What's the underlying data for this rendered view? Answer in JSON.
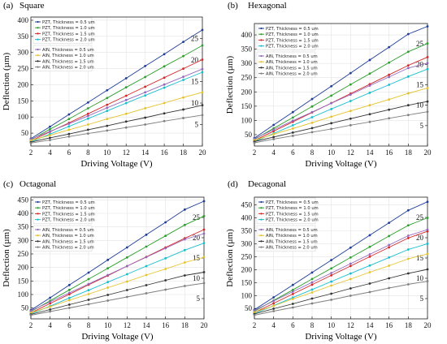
{
  "figure": {
    "panels": [
      {
        "panel_label": "(a)",
        "title": "Square",
        "xlabel": "Driving Voltage (V)",
        "ylabel": "Deflection (µm)",
        "x_ticks": [
          2,
          4,
          6,
          8,
          10,
          12,
          14,
          16,
          18,
          20
        ],
        "left_ticks": [
          50,
          100,
          150,
          200,
          250,
          300,
          350,
          400
        ],
        "right_ticks": [
          5,
          10,
          15,
          20,
          25
        ],
        "legend_pzt": [
          "PZT, Thickness = 0.5 um",
          "PZT, Thickness = 1.0 um",
          "PZT, Thickness = 1.5 um",
          "PZT, Thickness = 2.0 um"
        ],
        "legend_aln": [
          "AlN, Thickness = 0.5 um",
          "AlN, Thickness = 1.0 um",
          "AlN, Thickness = 1.5 um",
          "AlN, Thickness = 2.0 um"
        ]
      },
      {
        "panel_label": "(b)",
        "title": "Hexagonal",
        "xlabel": "Driving Voltage (V)",
        "ylabel": "Deflection (µm)",
        "x_ticks": [
          2,
          4,
          6,
          8,
          10,
          12,
          14,
          16,
          18,
          20
        ],
        "left_ticks": [
          50,
          100,
          150,
          200,
          250,
          300,
          350,
          400
        ],
        "right_ticks": [
          5,
          10,
          15,
          20,
          25
        ],
        "legend_pzt": [
          "PZT, Thickness = 0.5 um",
          "PZT, Thickness = 1.0 um",
          "PZT, Thickness = 1.5 um",
          "PZT, Thickness = 2.0 um"
        ],
        "legend_aln": [
          "AlN, Thickness = 0.5 um",
          "AlN, Thickness = 1.0 um",
          "AlN, Thickness = 1.5 um",
          "AlN, Thickness = 2.0 um"
        ]
      },
      {
        "panel_label": "(c)",
        "title": "Octagonal",
        "xlabel": "Driving Voltage (V)",
        "ylabel": "Deflection (µm)",
        "x_ticks": [
          2,
          4,
          6,
          8,
          10,
          12,
          14,
          16,
          18,
          20
        ],
        "left_ticks": [
          50,
          100,
          150,
          200,
          250,
          300,
          350,
          400,
          450
        ],
        "right_ticks": [
          5,
          10,
          15,
          20,
          25
        ],
        "legend_pzt": [
          "PZT, Thickness = 0.5 um",
          "PZT, Thickness = 1.0 um",
          "PZT, Thickness = 1.5 um",
          "PZT, Thickness = 2.0 um"
        ],
        "legend_aln": [
          "AlN, Thickness = 0.5 um",
          "AlN, Thickness = 1.0 um",
          "AlN, Thickness = 1.5 um",
          "AlN, Thickness = 2.0 um"
        ]
      },
      {
        "panel_label": "(d)",
        "title": "Decagonal",
        "xlabel": "Driving Voltage (V)",
        "ylabel": "Deflection (µm)",
        "x_ticks": [
          2,
          4,
          6,
          8,
          10,
          12,
          14,
          16,
          18,
          20
        ],
        "left_ticks": [
          50,
          100,
          150,
          200,
          250,
          300,
          350,
          400,
          450
        ],
        "right_ticks": [
          5,
          10,
          15,
          20,
          25
        ],
        "legend_pzt": [
          "PZT, Thickness = 0.5 um",
          "PZT, Thickness = 1.0 um",
          "PZT, Thickness = 1.5 um",
          "PZT, Thickness = 2.0 um"
        ],
        "legend_aln": [
          "AlN, Thickness = 0.5 um",
          "AlN, Thickness = 1.0 um",
          "AlN, Thickness = 1.5 um",
          "AlN, Thickness = 2.0 um"
        ]
      }
    ]
  },
  "chart_data": [
    {
      "type": "line",
      "title": "Square",
      "xlabel": "Driving Voltage (V)",
      "ylabel": "Deflection (µm)",
      "xlim": [
        2,
        20
      ],
      "ylim_left": [
        10,
        410
      ],
      "ylim_right": [
        0,
        30
      ],
      "grid": true,
      "legend_placement": "top-left",
      "x": [
        2,
        4,
        6,
        8,
        10,
        12,
        14,
        16,
        18,
        20
      ],
      "series": [
        {
          "name": "PZT, Thickness = 0.5 um",
          "axis": "left",
          "color": "#1f3d99",
          "values": [
            33,
            70,
            108,
            145,
            183,
            220,
            258,
            295,
            333,
            370
          ]
        },
        {
          "name": "PZT, Thickness = 1.0 um",
          "axis": "left",
          "color": "#2ca02c",
          "values": [
            29,
            62,
            94,
            127,
            159,
            192,
            224,
            257,
            289,
            322
          ]
        },
        {
          "name": "PZT, Thickness = 1.5 um",
          "axis": "left",
          "color": "#d62728",
          "values": [
            26,
            54,
            82,
            110,
            138,
            166,
            194,
            222,
            250,
            278
          ]
        },
        {
          "name": "PZT, Thickness = 2.0 um",
          "axis": "left",
          "color": "#17becf",
          "values": [
            23,
            47,
            71,
            95,
            119,
            143,
            167,
            191,
            215,
            239
          ]
        },
        {
          "name": "AlN, Thickness = 0.5 um",
          "axis": "right",
          "color": "#9467bd",
          "values": [
            1.6,
            3.4,
            5.2,
            7.0,
            8.9,
            10.7,
            12.5,
            14.3,
            16.1,
            17.9
          ]
        },
        {
          "name": "AlN, Thickness = 1.0 um",
          "axis": "right",
          "color": "#e6c229",
          "values": [
            1.3,
            2.5,
            3.8,
            5.0,
            6.3,
            7.5,
            8.8,
            10.0,
            11.3,
            12.5
          ]
        },
        {
          "name": "AlN, Thickness = 1.5 um",
          "axis": "right",
          "color": "#333333",
          "values": [
            0.9,
            1.9,
            2.8,
            3.8,
            4.7,
            5.7,
            6.6,
            7.6,
            8.5,
            9.5
          ]
        },
        {
          "name": "AlN, Thickness = 2.0 um",
          "axis": "right",
          "color": "#7f7f7f",
          "values": [
            0.7,
            1.4,
            2.2,
            2.9,
            3.6,
            4.3,
            5.0,
            5.8,
            6.5,
            7.2
          ]
        }
      ]
    },
    {
      "type": "line",
      "title": "Hexagonal",
      "xlabel": "Driving Voltage (V)",
      "ylabel": "Deflection (µm)",
      "xlim": [
        2,
        20
      ],
      "ylim_left": [
        10,
        440
      ],
      "ylim_right": [
        0,
        30
      ],
      "grid": true,
      "legend_placement": "top-left",
      "x": [
        2,
        4,
        6,
        8,
        10,
        12,
        14,
        16,
        18,
        20
      ],
      "series": [
        {
          "name": "PZT, Thickness = 0.5 um",
          "axis": "left",
          "color": "#1f3d99",
          "values": [
            38,
            84,
            129,
            175,
            220,
            266,
            312,
            357,
            403,
            430
          ]
        },
        {
          "name": "PZT, Thickness = 1.0 um",
          "axis": "left",
          "color": "#2ca02c",
          "values": [
            33,
            72,
            110,
            149,
            187,
            226,
            264,
            303,
            341,
            370
          ]
        },
        {
          "name": "PZT, Thickness = 1.5 um",
          "axis": "left",
          "color": "#d62728",
          "values": [
            29,
            62,
            95,
            128,
            161,
            194,
            227,
            260,
            293,
            322
          ]
        },
        {
          "name": "PZT, Thickness = 2.0 um",
          "axis": "left",
          "color": "#17becf",
          "values": [
            26,
            54,
            83,
            111,
            140,
            168,
            197,
            225,
            254,
            280
          ]
        },
        {
          "name": "AlN, Thickness = 0.5 um",
          "axis": "right",
          "color": "#9467bd",
          "values": [
            1.8,
            4.0,
            6.2,
            8.3,
            10.5,
            12.6,
            14.8,
            16.9,
            19.1,
            20.3
          ]
        },
        {
          "name": "AlN, Thickness = 1.0 um",
          "axis": "right",
          "color": "#e6c229",
          "values": [
            1.4,
            2.9,
            4.3,
            5.7,
            7.2,
            8.6,
            10.0,
            11.4,
            12.9,
            14.2
          ]
        },
        {
          "name": "AlN, Thickness = 1.5 um",
          "axis": "right",
          "color": "#333333",
          "values": [
            1.1,
            2.2,
            3.3,
            4.4,
            5.6,
            6.7,
            7.8,
            8.9,
            10.0,
            10.9
          ]
        },
        {
          "name": "AlN, Thickness = 2.0 um",
          "axis": "right",
          "color": "#7f7f7f",
          "values": [
            0.8,
            1.7,
            2.5,
            3.4,
            4.2,
            5.1,
            5.9,
            6.8,
            7.6,
            8.4
          ]
        }
      ]
    },
    {
      "type": "line",
      "title": "Octagonal",
      "xlabel": "Driving Voltage (V)",
      "ylabel": "Deflection (µm)",
      "xlim": [
        2,
        20
      ],
      "ylim_left": [
        10,
        460
      ],
      "ylim_right": [
        0,
        30
      ],
      "grid": true,
      "legend_placement": "top-left",
      "x": [
        2,
        4,
        6,
        8,
        10,
        12,
        14,
        16,
        18,
        20
      ],
      "series": [
        {
          "name": "PZT, Thickness = 0.5 um",
          "axis": "left",
          "color": "#1f3d99",
          "values": [
            42,
            88,
            135,
            181,
            228,
            274,
            321,
            367,
            414,
            445
          ]
        },
        {
          "name": "PZT, Thickness = 1.0 um",
          "axis": "left",
          "color": "#2ca02c",
          "values": [
            37,
            77,
            117,
            157,
            197,
            237,
            277,
            317,
            357,
            390
          ]
        },
        {
          "name": "PZT, Thickness = 1.5 um",
          "axis": "left",
          "color": "#d62728",
          "values": [
            32,
            67,
            101,
            136,
            170,
            205,
            239,
            274,
            308,
            340
          ]
        },
        {
          "name": "PZT, Thickness = 2.0 um",
          "axis": "left",
          "color": "#17becf",
          "values": [
            28,
            57,
            87,
            116,
            146,
            175,
            205,
            234,
            264,
            290
          ]
        },
        {
          "name": "AlN, Thickness = 0.5 um",
          "axis": "right",
          "color": "#9467bd",
          "values": [
            2.0,
            4.2,
            6.4,
            8.6,
            10.8,
            13.0,
            15.2,
            17.4,
            19.6,
            21.0
          ]
        },
        {
          "name": "AlN, Thickness = 1.0 um",
          "axis": "right",
          "color": "#e6c229",
          "values": [
            1.5,
            3.0,
            4.6,
            6.1,
            7.7,
            9.2,
            10.8,
            12.3,
            13.9,
            15.2
          ]
        },
        {
          "name": "AlN, Thickness = 1.5 um",
          "axis": "right",
          "color": "#333333",
          "values": [
            1.1,
            2.3,
            3.5,
            4.7,
            5.9,
            7.1,
            8.3,
            9.5,
            10.7,
            11.5
          ]
        },
        {
          "name": "AlN, Thickness = 2.0 um",
          "axis": "right",
          "color": "#7f7f7f",
          "values": [
            0.9,
            1.8,
            2.7,
            3.6,
            4.5,
            5.4,
            6.3,
            7.2,
            8.1,
            8.8
          ]
        }
      ]
    },
    {
      "type": "line",
      "title": "Decagonal",
      "xlabel": "Driving Voltage (V)",
      "ylabel": "Deflection (µm)",
      "xlim": [
        2,
        20
      ],
      "ylim_left": [
        10,
        480
      ],
      "ylim_right": [
        0,
        30
      ],
      "grid": true,
      "legend_placement": "top-left",
      "x": [
        2,
        4,
        6,
        8,
        10,
        12,
        14,
        16,
        18,
        20
      ],
      "series": [
        {
          "name": "PZT, Thickness = 0.5 um",
          "axis": "left",
          "color": "#1f3d99",
          "values": [
            45,
            93,
            141,
            189,
            237,
            285,
            333,
            381,
            429,
            462
          ]
        },
        {
          "name": "PZT, Thickness = 1.0 um",
          "axis": "left",
          "color": "#2ca02c",
          "values": [
            39,
            81,
            122,
            164,
            205,
            247,
            288,
            330,
            371,
            400
          ]
        },
        {
          "name": "PZT, Thickness = 1.5 um",
          "axis": "left",
          "color": "#d62728",
          "values": [
            34,
            70,
            106,
            142,
            178,
            214,
            250,
            286,
            322,
            348
          ]
        },
        {
          "name": "PZT, Thickness = 2.0 um",
          "axis": "left",
          "color": "#17becf",
          "values": [
            30,
            61,
            92,
            123,
            154,
            185,
            216,
            247,
            278,
            300
          ]
        },
        {
          "name": "AlN, Thickness = 0.5 um",
          "axis": "right",
          "color": "#9467bd",
          "values": [
            2.1,
            4.4,
            6.7,
            9.0,
            11.3,
            13.6,
            15.9,
            18.2,
            20.5,
            22.0
          ]
        },
        {
          "name": "AlN, Thickness = 1.0 um",
          "axis": "right",
          "color": "#e6c229",
          "values": [
            1.6,
            3.2,
            4.9,
            6.5,
            8.2,
            9.8,
            11.5,
            13.1,
            14.8,
            16.0
          ]
        },
        {
          "name": "AlN, Thickness = 1.5 um",
          "axis": "right",
          "color": "#333333",
          "values": [
            1.2,
            2.5,
            3.7,
            5.0,
            6.2,
            7.5,
            8.7,
            10.0,
            11.2,
            12.2
          ]
        },
        {
          "name": "AlN, Thickness = 2.0 um",
          "axis": "right",
          "color": "#7f7f7f",
          "values": [
            0.9,
            1.9,
            2.8,
            3.8,
            4.7,
            5.7,
            6.6,
            7.6,
            8.5,
            9.3
          ]
        }
      ]
    }
  ]
}
